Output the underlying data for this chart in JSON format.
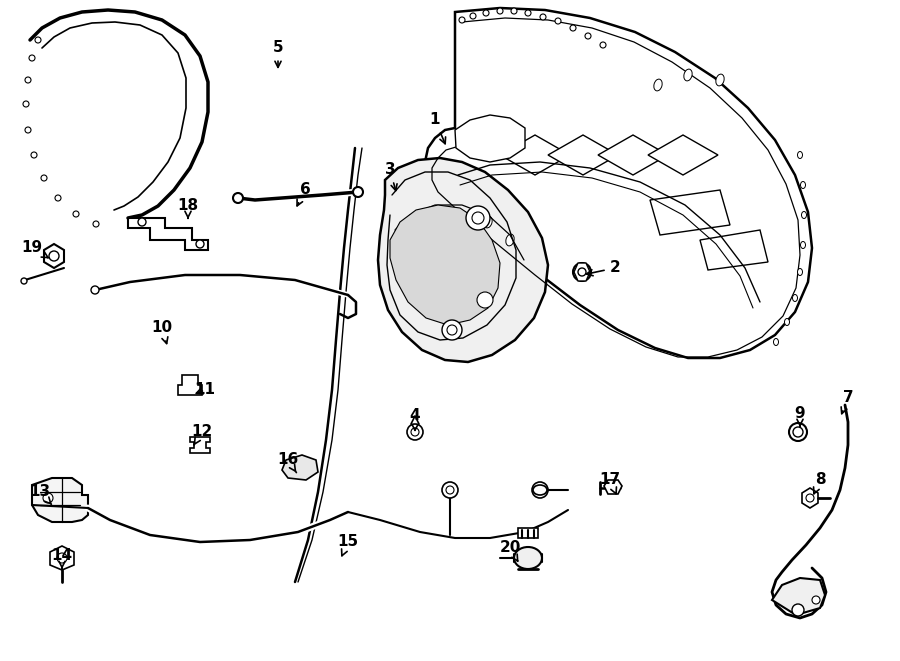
{
  "bg_color": "#ffffff",
  "line_color": "#000000",
  "figsize": [
    9.0,
    6.61
  ],
  "dpi": 100,
  "labels": [
    [
      "1",
      447,
      148,
      435,
      120
    ],
    [
      "2",
      582,
      275,
      615,
      268
    ],
    [
      "3",
      397,
      195,
      390,
      170
    ],
    [
      "4",
      415,
      435,
      415,
      415
    ],
    [
      "5",
      278,
      72,
      278,
      48
    ],
    [
      "6",
      295,
      210,
      305,
      190
    ],
    [
      "7",
      840,
      418,
      848,
      398
    ],
    [
      "8",
      812,
      498,
      820,
      480
    ],
    [
      "9",
      800,
      430,
      800,
      413
    ],
    [
      "10",
      168,
      348,
      162,
      328
    ],
    [
      "11",
      192,
      395,
      205,
      390
    ],
    [
      "12",
      192,
      448,
      202,
      432
    ],
    [
      "13",
      52,
      505,
      40,
      492
    ],
    [
      "14",
      62,
      572,
      62,
      555
    ],
    [
      "15",
      340,
      560,
      348,
      542
    ],
    [
      "16",
      298,
      475,
      288,
      460
    ],
    [
      "17",
      618,
      498,
      610,
      480
    ],
    [
      "18",
      188,
      222,
      188,
      205
    ],
    [
      "19",
      52,
      260,
      32,
      248
    ],
    [
      "20",
      520,
      565,
      510,
      548
    ]
  ]
}
